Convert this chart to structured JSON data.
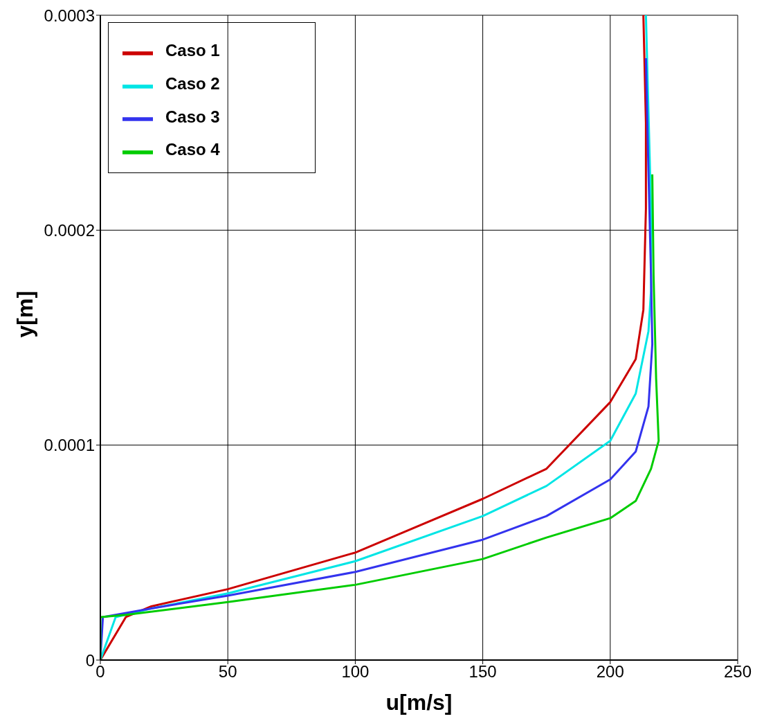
{
  "chart_data": {
    "type": "line",
    "xlabel": "u[m/s]",
    "ylabel": "y[m]",
    "xlim": [
      0,
      250
    ],
    "xticks": [
      0,
      50,
      100,
      150,
      200,
      250
    ],
    "ylim": [
      0,
      0.0003
    ],
    "yticks": [
      0,
      0.0001,
      0.0002,
      0.0003
    ],
    "grid": true,
    "legend": "top left",
    "line_style": "solid",
    "marker": "none",
    "series": [
      {
        "name": "Caso 1",
        "color": "#cc0000",
        "x": [
          0,
          10,
          20,
          50,
          100,
          150,
          175,
          200,
          210,
          213,
          214,
          214,
          213
        ],
        "values": [
          0,
          2e-05,
          2.5e-05,
          3.3e-05,
          5e-05,
          7.5e-05,
          8.9e-05,
          0.00012,
          0.00014,
          0.000163,
          0.00021,
          0.00025,
          0.0003
        ]
      },
      {
        "name": "Caso 2",
        "color": "#00e5e5",
        "x": [
          0,
          6,
          20,
          50,
          100,
          150,
          175,
          200,
          210,
          215,
          216,
          216,
          214
        ],
        "values": [
          0,
          2e-05,
          2.4e-05,
          3.1e-05,
          4.6e-05,
          6.7e-05,
          8.1e-05,
          0.000102,
          0.000124,
          0.000153,
          0.000172,
          0.00021,
          0.0003
        ]
      },
      {
        "name": "Caso 3",
        "color": "#3333ee",
        "x": [
          0,
          1,
          20,
          50,
          100,
          150,
          175,
          200,
          210,
          215,
          216.5,
          216,
          215,
          214
        ],
        "values": [
          0,
          2e-05,
          2.4e-05,
          3e-05,
          4.1e-05,
          5.6e-05,
          6.7e-05,
          8.4e-05,
          9.7e-05,
          0.000118,
          0.000147,
          0.000179,
          0.000227,
          0.00028
        ]
      },
      {
        "name": "Caso 4",
        "color": "#00cc00",
        "x": [
          0,
          0,
          10,
          50,
          100,
          150,
          175,
          200,
          210,
          216,
          219,
          218,
          217,
          216.5
        ],
        "values": [
          0,
          2e-05,
          2.1e-05,
          2.7e-05,
          3.5e-05,
          4.7e-05,
          5.7e-05,
          6.6e-05,
          7.4e-05,
          8.9e-05,
          0.000102,
          0.000131,
          0.000179,
          0.000226
        ]
      }
    ]
  }
}
